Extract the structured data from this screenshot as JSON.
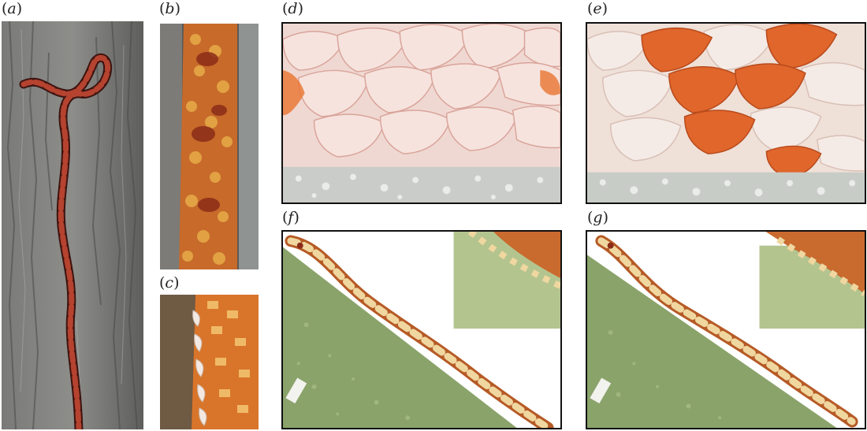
{
  "figure": {
    "panels": [
      {
        "id": "a",
        "label": "(a)",
        "letter": "a",
        "description_icon": "snake-on-tree-bark"
      },
      {
        "id": "b",
        "label": "(b)",
        "letter": "b",
        "description_icon": "snake-scales-closeup"
      },
      {
        "id": "c",
        "label": "(c)",
        "letter": "c",
        "description_icon": "ventral-scales-closeup"
      },
      {
        "id": "d",
        "label": "(d)",
        "letter": "d",
        "description_icon": "ventral-scales-on-substrate"
      },
      {
        "id": "e",
        "label": "(e)",
        "letter": "e",
        "description_icon": "ventral-scales-on-substrate"
      },
      {
        "id": "f",
        "label": "(f)",
        "letter": "f",
        "description_icon": "snake-climbing-slope-with-inset"
      },
      {
        "id": "g",
        "label": "(g)",
        "letter": "g",
        "description_icon": "snake-climbing-slope-with-inset"
      }
    ]
  },
  "colors": {
    "bark": "#6e6e6c",
    "snake_red": "#b5432f",
    "scale_pink": "#f2d6cf",
    "scale_orange": "#e0662b",
    "substrate_green": "#8aa36a",
    "snake_cream": "#f0d7a0"
  }
}
